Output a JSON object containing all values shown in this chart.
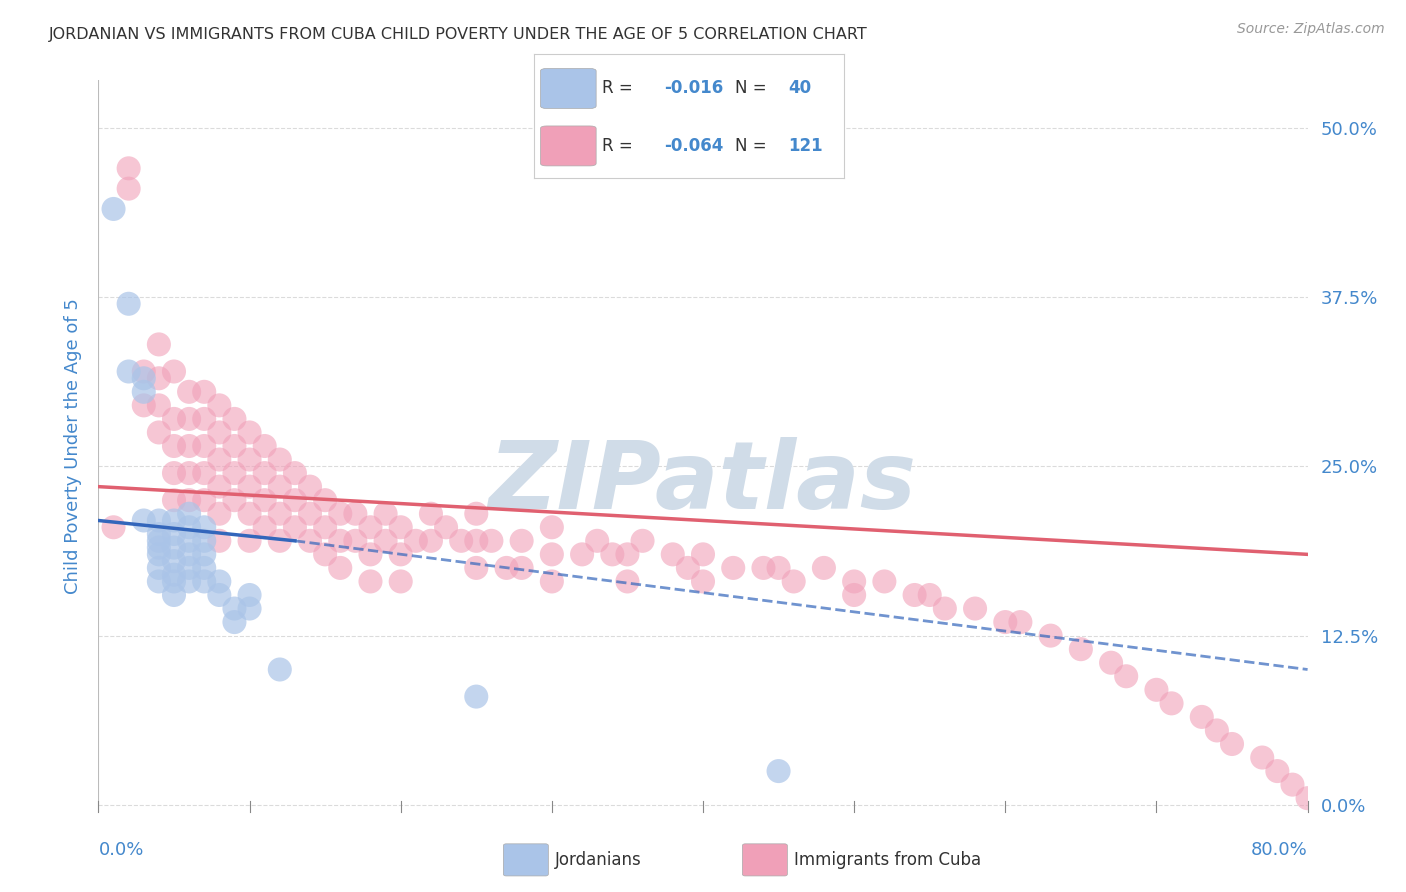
{
  "title": "JORDANIAN VS IMMIGRANTS FROM CUBA CHILD POVERTY UNDER THE AGE OF 5 CORRELATION CHART",
  "source": "Source: ZipAtlas.com",
  "ylabel": "Child Poverty Under the Age of 5",
  "ytick_values": [
    0.0,
    0.125,
    0.25,
    0.375,
    0.5
  ],
  "ytick_labels": [
    "0.0%",
    "12.5%",
    "25.0%",
    "37.5%",
    "50.0%"
  ],
  "xlim": [
    0.0,
    0.8
  ],
  "ylim": [
    -0.005,
    0.535
  ],
  "legend_jordan": {
    "R": -0.016,
    "N": 40,
    "label": "Jordanians"
  },
  "legend_cuba": {
    "R": -0.064,
    "N": 121,
    "label": "Immigrants from Cuba"
  },
  "jordan_color": "#aac4e8",
  "jordan_line_color": "#3366bb",
  "cuba_color": "#f0a0b8",
  "cuba_line_color": "#e06070",
  "background_color": "#ffffff",
  "grid_color": "#cccccc",
  "title_color": "#333333",
  "axis_label_color": "#4488cc",
  "watermark_color": "#d0dce8",
  "jordan_x": [
    0.01,
    0.02,
    0.02,
    0.03,
    0.03,
    0.03,
    0.04,
    0.04,
    0.04,
    0.04,
    0.04,
    0.04,
    0.04,
    0.05,
    0.05,
    0.05,
    0.05,
    0.05,
    0.05,
    0.05,
    0.06,
    0.06,
    0.06,
    0.06,
    0.06,
    0.06,
    0.07,
    0.07,
    0.07,
    0.07,
    0.07,
    0.08,
    0.08,
    0.09,
    0.09,
    0.1,
    0.1,
    0.12,
    0.25,
    0.45
  ],
  "jordan_y": [
    0.44,
    0.37,
    0.32,
    0.315,
    0.305,
    0.21,
    0.21,
    0.2,
    0.195,
    0.19,
    0.185,
    0.175,
    0.165,
    0.21,
    0.2,
    0.19,
    0.18,
    0.17,
    0.165,
    0.155,
    0.215,
    0.205,
    0.195,
    0.185,
    0.175,
    0.165,
    0.205,
    0.195,
    0.185,
    0.175,
    0.165,
    0.165,
    0.155,
    0.145,
    0.135,
    0.155,
    0.145,
    0.1,
    0.08,
    0.025
  ],
  "cuba_x": [
    0.01,
    0.02,
    0.02,
    0.03,
    0.03,
    0.04,
    0.04,
    0.04,
    0.04,
    0.05,
    0.05,
    0.05,
    0.05,
    0.05,
    0.06,
    0.06,
    0.06,
    0.06,
    0.06,
    0.07,
    0.07,
    0.07,
    0.07,
    0.07,
    0.08,
    0.08,
    0.08,
    0.08,
    0.08,
    0.08,
    0.09,
    0.09,
    0.09,
    0.09,
    0.1,
    0.1,
    0.1,
    0.1,
    0.1,
    0.11,
    0.11,
    0.11,
    0.11,
    0.12,
    0.12,
    0.12,
    0.12,
    0.13,
    0.13,
    0.13,
    0.14,
    0.14,
    0.14,
    0.15,
    0.15,
    0.15,
    0.16,
    0.16,
    0.16,
    0.17,
    0.17,
    0.18,
    0.18,
    0.18,
    0.19,
    0.19,
    0.2,
    0.2,
    0.2,
    0.21,
    0.22,
    0.22,
    0.23,
    0.24,
    0.25,
    0.25,
    0.25,
    0.26,
    0.27,
    0.28,
    0.28,
    0.3,
    0.3,
    0.3,
    0.32,
    0.33,
    0.34,
    0.35,
    0.35,
    0.36,
    0.38,
    0.39,
    0.4,
    0.4,
    0.42,
    0.44,
    0.45,
    0.46,
    0.48,
    0.5,
    0.5,
    0.52,
    0.54,
    0.55,
    0.56,
    0.58,
    0.6,
    0.61,
    0.63,
    0.65,
    0.67,
    0.68,
    0.7,
    0.71,
    0.73,
    0.74,
    0.75,
    0.77,
    0.78,
    0.79,
    0.8
  ],
  "cuba_y": [
    0.205,
    0.47,
    0.455,
    0.32,
    0.295,
    0.34,
    0.315,
    0.295,
    0.275,
    0.32,
    0.285,
    0.265,
    0.245,
    0.225,
    0.305,
    0.285,
    0.265,
    0.245,
    0.225,
    0.305,
    0.285,
    0.265,
    0.245,
    0.225,
    0.295,
    0.275,
    0.255,
    0.235,
    0.215,
    0.195,
    0.285,
    0.265,
    0.245,
    0.225,
    0.275,
    0.255,
    0.235,
    0.215,
    0.195,
    0.265,
    0.245,
    0.225,
    0.205,
    0.255,
    0.235,
    0.215,
    0.195,
    0.245,
    0.225,
    0.205,
    0.235,
    0.215,
    0.195,
    0.225,
    0.205,
    0.185,
    0.215,
    0.195,
    0.175,
    0.215,
    0.195,
    0.205,
    0.185,
    0.165,
    0.215,
    0.195,
    0.205,
    0.185,
    0.165,
    0.195,
    0.215,
    0.195,
    0.205,
    0.195,
    0.215,
    0.195,
    0.175,
    0.195,
    0.175,
    0.195,
    0.175,
    0.205,
    0.185,
    0.165,
    0.185,
    0.195,
    0.185,
    0.185,
    0.165,
    0.195,
    0.185,
    0.175,
    0.185,
    0.165,
    0.175,
    0.175,
    0.175,
    0.165,
    0.175,
    0.165,
    0.155,
    0.165,
    0.155,
    0.155,
    0.145,
    0.145,
    0.135,
    0.135,
    0.125,
    0.115,
    0.105,
    0.095,
    0.085,
    0.075,
    0.065,
    0.055,
    0.045,
    0.035,
    0.025,
    0.015,
    0.005
  ],
  "jordan_line_x0": 0.0,
  "jordan_line_y0": 0.21,
  "jordan_line_x1": 0.8,
  "jordan_line_y1": 0.1,
  "cuba_line_x0": 0.0,
  "cuba_line_y0": 0.235,
  "cuba_line_x1": 0.8,
  "cuba_line_y1": 0.185
}
